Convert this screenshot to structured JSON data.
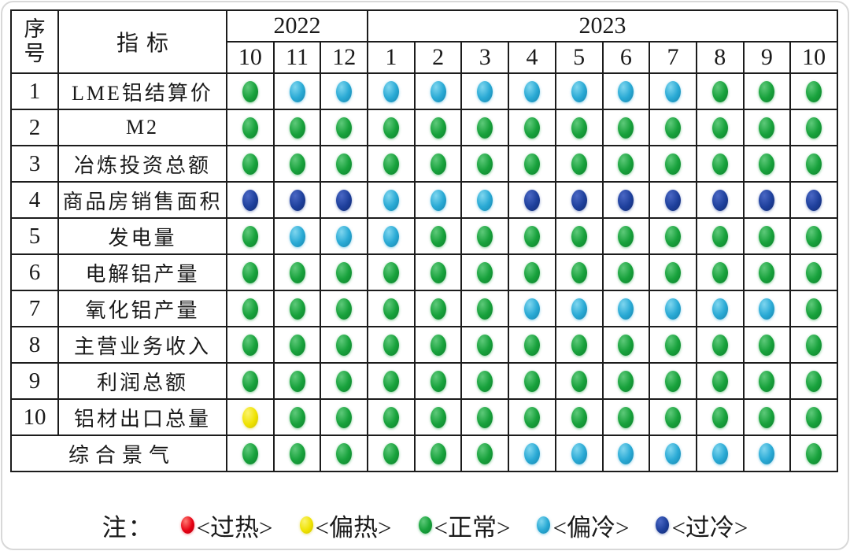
{
  "table": {
    "header": {
      "no_lines": [
        "序",
        "号"
      ],
      "indicator": "指标",
      "year_groups": [
        {
          "year": "2022",
          "months": [
            "10",
            "11",
            "12"
          ]
        },
        {
          "year": "2023",
          "months": [
            "1",
            "2",
            "3",
            "4",
            "5",
            "6",
            "7",
            "8",
            "9",
            "10"
          ]
        }
      ]
    }
  },
  "legend": {
    "prefix": "注：",
    "items": [
      {
        "status": "overheat",
        "label": "<过热>",
        "color": "#e60012"
      },
      {
        "status": "warm",
        "label": "<偏热>",
        "color": "#efe200"
      },
      {
        "status": "normal",
        "label": "<正常>",
        "color": "#18a23c"
      },
      {
        "status": "cool",
        "label": "<偏冷>",
        "color": "#2aaad5"
      },
      {
        "status": "cold",
        "label": "<过冷>",
        "color": "#1d3f9b"
      }
    ]
  },
  "chart_data": {
    "type": "heatmap",
    "title": "",
    "columns": [
      "2022-10",
      "2022-11",
      "2022-12",
      "2023-1",
      "2023-2",
      "2023-3",
      "2023-4",
      "2023-5",
      "2023-6",
      "2023-7",
      "2023-8",
      "2023-9",
      "2023-10"
    ],
    "status_scale": {
      "overheat": "过热",
      "warm": "偏热",
      "normal": "正常",
      "cool": "偏冷",
      "cold": "过冷"
    },
    "status_colors": {
      "overheat": "#e60012",
      "warm": "#efe200",
      "normal": "#18a23c",
      "cool": "#2aaad5",
      "cold": "#1d3f9b"
    },
    "rows": [
      {
        "no": "1",
        "indicator": "LME铝结算价",
        "values": [
          "normal",
          "cool",
          "cool",
          "cool",
          "cool",
          "cool",
          "cool",
          "cool",
          "cool",
          "cool",
          "normal",
          "normal",
          "normal"
        ]
      },
      {
        "no": "2",
        "indicator": "M2",
        "values": [
          "normal",
          "normal",
          "normal",
          "normal",
          "normal",
          "normal",
          "normal",
          "normal",
          "normal",
          "normal",
          "normal",
          "normal",
          "normal"
        ]
      },
      {
        "no": "3",
        "indicator": "冶炼投资总额",
        "values": [
          "normal",
          "normal",
          "normal",
          "normal",
          "normal",
          "normal",
          "normal",
          "normal",
          "normal",
          "normal",
          "normal",
          "normal",
          "normal"
        ]
      },
      {
        "no": "4",
        "indicator": "商品房销售面积",
        "values": [
          "cold",
          "cold",
          "cold",
          "cool",
          "cool",
          "cool",
          "cold",
          "cold",
          "cold",
          "cold",
          "cold",
          "cold",
          "cold"
        ]
      },
      {
        "no": "5",
        "indicator": "发电量",
        "values": [
          "normal",
          "cool",
          "cool",
          "cool",
          "normal",
          "normal",
          "normal",
          "normal",
          "normal",
          "normal",
          "normal",
          "normal",
          "normal"
        ]
      },
      {
        "no": "6",
        "indicator": "电解铝产量",
        "values": [
          "normal",
          "normal",
          "normal",
          "normal",
          "normal",
          "normal",
          "normal",
          "normal",
          "normal",
          "normal",
          "normal",
          "normal",
          "normal"
        ]
      },
      {
        "no": "7",
        "indicator": "氧化铝产量",
        "values": [
          "normal",
          "normal",
          "normal",
          "normal",
          "normal",
          "normal",
          "cool",
          "cool",
          "cool",
          "cool",
          "cool",
          "cool",
          "normal"
        ]
      },
      {
        "no": "8",
        "indicator": "主营业务收入",
        "values": [
          "normal",
          "normal",
          "normal",
          "normal",
          "normal",
          "normal",
          "normal",
          "normal",
          "normal",
          "normal",
          "normal",
          "normal",
          "normal"
        ]
      },
      {
        "no": "9",
        "indicator": "利润总额",
        "values": [
          "normal",
          "normal",
          "normal",
          "normal",
          "normal",
          "normal",
          "normal",
          "normal",
          "normal",
          "normal",
          "normal",
          "normal",
          "normal"
        ]
      },
      {
        "no": "10",
        "indicator": "铝材出口总量",
        "values": [
          "warm",
          "normal",
          "normal",
          "normal",
          "normal",
          "normal",
          "normal",
          "normal",
          "normal",
          "normal",
          "normal",
          "normal",
          "normal"
        ]
      },
      {
        "no": "",
        "indicator": "综合景气",
        "values": [
          "normal",
          "normal",
          "normal",
          "normal",
          "normal",
          "normal",
          "cool",
          "cool",
          "cool",
          "cool",
          "cool",
          "cool",
          "normal"
        ]
      }
    ]
  }
}
